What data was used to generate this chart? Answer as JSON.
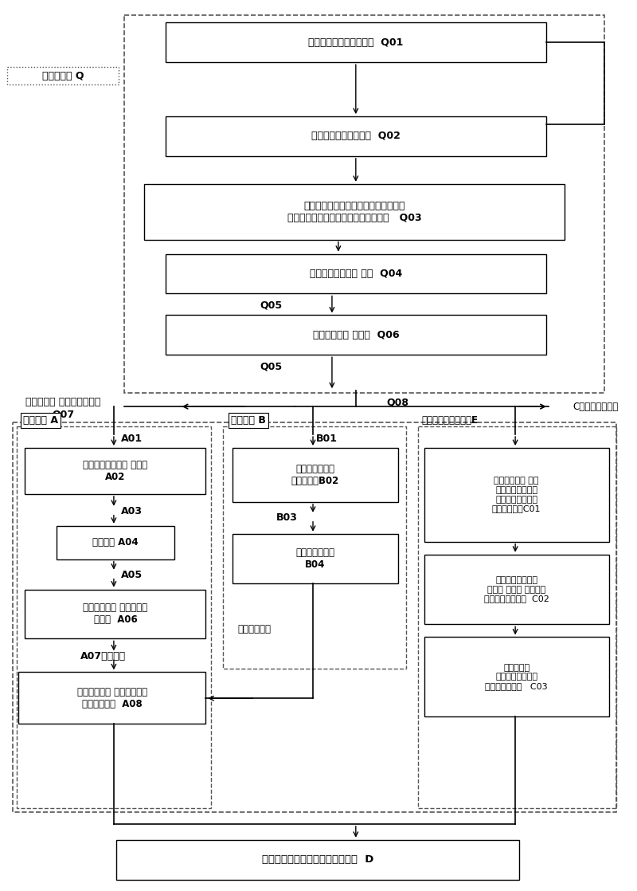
{
  "figsize": [
    8.0,
    11.18
  ],
  "dpi": 100,
  "bg_color": "#ffffff",
  "Q_label": "前分选处理 Q",
  "A_label": "机械精选 A",
  "B_label": "人工精选 B",
  "E_label": "细小颗粒有机物收集E",
  "C_label": "C（高浓度污水）",
  "Q07_text": "以筛网装置 获取有机物垃圾\nQ07",
  "Q08_label": "Q08",
  "A01_label": "A01",
  "A03_label": "A03",
  "A05_label": "A05",
  "A07_label": "A07阶梯水道",
  "B01_label": "B01",
  "B03_label": "B03",
  "organic_water": "（有机污水）",
  "Q05_label": "Q05",
  "Q01_text": "袋包垃圾破袋和垃圾冲洗  Q01",
  "Q02_text": "分离垃圾中的小颗粒物  Q02",
  "Q03_text": "分离垃圾中大于某一特定尺寸的物质，\n小于特定尺寸的垃圾进入后续处理步骤   Q03",
  "Q04_text": "浮力分选分离惰性 重物  Q04",
  "Q06_text": "风力分选分离 小轻物  Q06",
  "A02_text": "去除杂有机物中的 轻漂物\nA02",
  "A04_text": "磨浆处理 A04",
  "A06_text": "去除有机浆中 较大的非可\n发酵物  A06",
  "A08_text": "利用精选设备 得到高纯度的\n可发酵有机物  A08",
  "B02_text": "人工分拣得到可\n发酵有机物B02",
  "B04_text": "破碎机破碎处理\nB04",
  "C01_text": "进行曝气搅拌 沉淀\n隔除惰性无机物，\n利用自动隔栅机清\n除漂浮性杂物C01",
  "C02_text": "通过溶气气浮工艺\n使悬浮 有机物 漂浮于水\n面形成浮渣有机物  C02",
  "C03_text": "利用刮渣机\n将浮渣有机物集中\n送至浮渣收集池   C03",
  "D_text": "作为沼气发酵原料的可发酵有机物  D"
}
